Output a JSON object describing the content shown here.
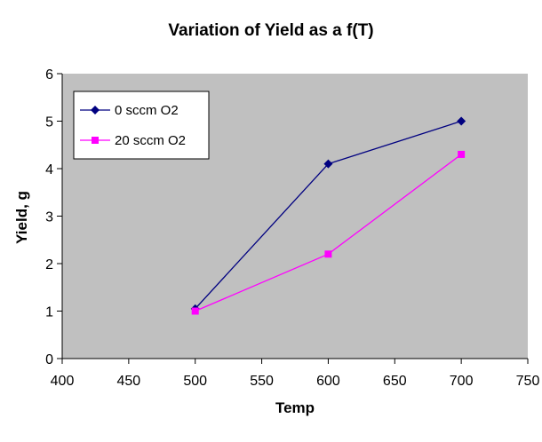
{
  "chart_data": {
    "type": "scatter",
    "title": "Variation of Yield as a f(T)",
    "xlabel": "Temp",
    "ylabel": "Yield, g",
    "xlim": [
      400,
      750
    ],
    "ylim": [
      0,
      6
    ],
    "xticks": [
      400,
      450,
      500,
      550,
      600,
      650,
      700,
      750
    ],
    "yticks": [
      0,
      1,
      2,
      3,
      4,
      5,
      6
    ],
    "grid": false,
    "legend_position": "top-left",
    "plot_background": "#c0c0c0",
    "series": [
      {
        "name": "0 sccm O2",
        "x": [
          500,
          600,
          700
        ],
        "y": [
          1.05,
          4.1,
          5.0
        ],
        "color": "#000080",
        "marker": "diamond"
      },
      {
        "name": "20 sccm O2",
        "x": [
          500,
          600,
          700
        ],
        "y": [
          1.0,
          2.2,
          4.3
        ],
        "color": "#ff00ff",
        "marker": "square"
      }
    ]
  }
}
